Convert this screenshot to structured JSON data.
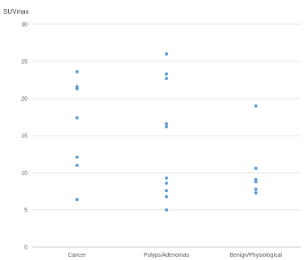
{
  "chart_data": {
    "type": "scatter",
    "ylabel": "SUVmax",
    "ylim": [
      0,
      30
    ],
    "yticks": [
      0,
      5,
      10,
      15,
      20,
      25,
      30
    ],
    "categories": [
      "Cancer",
      "Polyps/Adenomas",
      "Benign/Physiological"
    ],
    "grid": true,
    "marker_color": "#5b9bd5",
    "gridline_color": "#e3e3e3",
    "series": [
      {
        "category": "Cancer",
        "values": [
          23.6,
          21.6,
          21.3,
          17.4,
          12.1,
          11.0,
          6.4
        ]
      },
      {
        "category": "Polyps/Adenomas",
        "values": [
          26.0,
          23.3,
          22.7,
          16.6,
          16.2,
          9.3,
          8.6,
          7.6,
          6.8,
          5.0
        ]
      },
      {
        "category": "Benign/Physiological",
        "values": [
          19.0,
          10.6,
          9.1,
          8.8,
          7.8,
          7.3
        ]
      }
    ]
  }
}
